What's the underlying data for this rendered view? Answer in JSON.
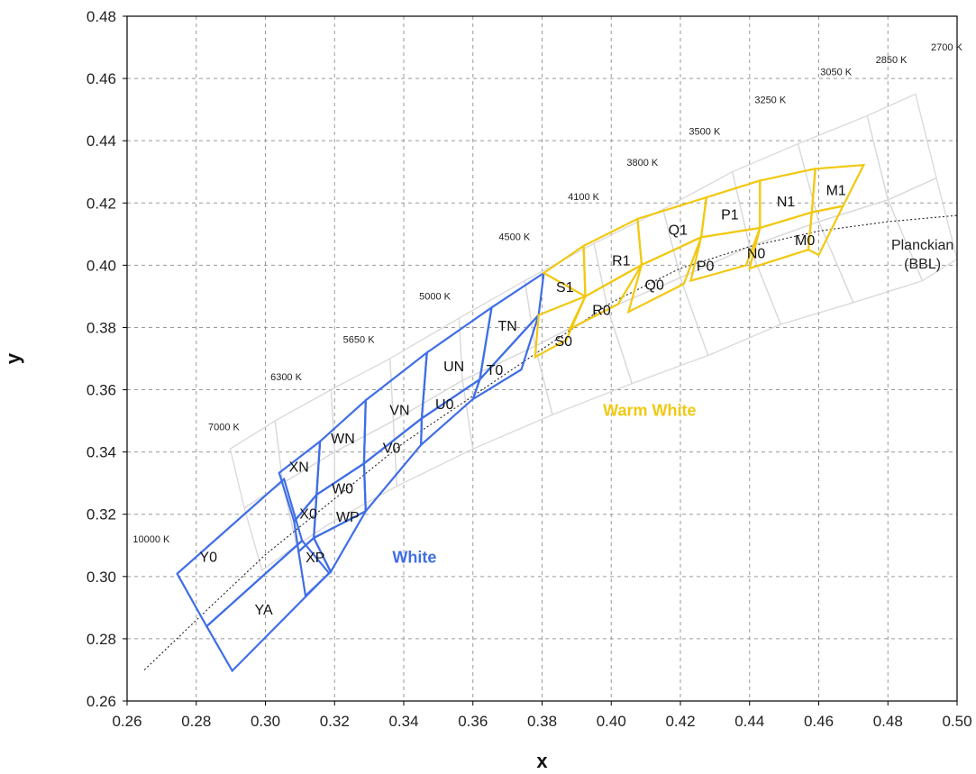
{
  "chart_data": {
    "type": "scatter",
    "title": "",
    "xlabel": "x",
    "ylabel": "y",
    "xlim": [
      0.26,
      0.5
    ],
    "ylim": [
      0.26,
      0.48
    ],
    "xticks": [
      "0.26",
      "0.28",
      "0.30",
      "0.32",
      "0.34",
      "0.36",
      "0.38",
      "0.40",
      "0.42",
      "0.44",
      "0.46",
      "0.48",
      "0.50"
    ],
    "yticks": [
      "0.26",
      "0.28",
      "0.30",
      "0.32",
      "0.34",
      "0.36",
      "0.38",
      "0.40",
      "0.42",
      "0.44",
      "0.46",
      "0.48"
    ],
    "grid": true,
    "colors": {
      "white": "#3f6ee6",
      "warm_white": "#f2c811",
      "grid_ansi": "#d9d9d9",
      "planckian": "#222222"
    },
    "planckian_locus": {
      "name": "Planckian (BBL)",
      "label_lines": [
        "Planckian",
        "(BBL)"
      ],
      "points": [
        [
          0.265,
          0.27
        ],
        [
          0.28,
          0.286
        ],
        [
          0.3,
          0.307
        ],
        [
          0.32,
          0.325
        ],
        [
          0.34,
          0.343
        ],
        [
          0.36,
          0.358
        ],
        [
          0.38,
          0.373
        ],
        [
          0.4,
          0.388
        ],
        [
          0.42,
          0.399
        ],
        [
          0.44,
          0.406
        ],
        [
          0.46,
          0.411
        ],
        [
          0.48,
          0.414
        ],
        [
          0.5,
          0.416
        ]
      ]
    },
    "cct_labels": [
      {
        "label": "10000 K",
        "x": 0.267,
        "y": 0.311
      },
      {
        "label": "7000 K",
        "x": 0.288,
        "y": 0.347
      },
      {
        "label": "6300 K",
        "x": 0.306,
        "y": 0.363
      },
      {
        "label": "5650 K",
        "x": 0.327,
        "y": 0.375
      },
      {
        "label": "5000 K",
        "x": 0.349,
        "y": 0.389
      },
      {
        "label": "4500 K",
        "x": 0.372,
        "y": 0.408
      },
      {
        "label": "4100 K",
        "x": 0.392,
        "y": 0.421
      },
      {
        "label": "3800 K",
        "x": 0.409,
        "y": 0.432
      },
      {
        "label": "3500 K",
        "x": 0.427,
        "y": 0.442
      },
      {
        "label": "3250 K",
        "x": 0.446,
        "y": 0.452
      },
      {
        "label": "3050 K",
        "x": 0.465,
        "y": 0.461
      },
      {
        "label": "2850 K",
        "x": 0.481,
        "y": 0.465
      },
      {
        "label": "2700 K",
        "x": 0.497,
        "y": 0.469
      }
    ],
    "ansi_quads": [
      {
        "p": [
          [
            0.2898,
            0.341
          ],
          [
            0.3028,
            0.35
          ],
          [
            0.305,
            0.33
          ],
          [
            0.2939,
            0.322
          ]
        ]
      },
      {
        "p": [
          [
            0.3028,
            0.35
          ],
          [
            0.319,
            0.36
          ],
          [
            0.32,
            0.34
          ],
          [
            0.305,
            0.33
          ]
        ]
      },
      {
        "p": [
          [
            0.319,
            0.36
          ],
          [
            0.336,
            0.37
          ],
          [
            0.337,
            0.35
          ],
          [
            0.32,
            0.34
          ]
        ]
      },
      {
        "p": [
          [
            0.336,
            0.37
          ],
          [
            0.356,
            0.383
          ],
          [
            0.357,
            0.363
          ],
          [
            0.337,
            0.35
          ]
        ]
      },
      {
        "p": [
          [
            0.356,
            0.383
          ],
          [
            0.375,
            0.395
          ],
          [
            0.378,
            0.374
          ],
          [
            0.357,
            0.363
          ]
        ]
      },
      {
        "p": [
          [
            0.375,
            0.395
          ],
          [
            0.395,
            0.407
          ],
          [
            0.399,
            0.386
          ],
          [
            0.378,
            0.374
          ]
        ]
      },
      {
        "p": [
          [
            0.395,
            0.407
          ],
          [
            0.415,
            0.418
          ],
          [
            0.42,
            0.396
          ],
          [
            0.399,
            0.386
          ]
        ]
      },
      {
        "p": [
          [
            0.415,
            0.418
          ],
          [
            0.435,
            0.43
          ],
          [
            0.44,
            0.406
          ],
          [
            0.42,
            0.396
          ]
        ]
      },
      {
        "p": [
          [
            0.435,
            0.43
          ],
          [
            0.454,
            0.439
          ],
          [
            0.46,
            0.414
          ],
          [
            0.44,
            0.406
          ]
        ]
      },
      {
        "p": [
          [
            0.454,
            0.439
          ],
          [
            0.474,
            0.448
          ],
          [
            0.48,
            0.421
          ],
          [
            0.46,
            0.414
          ]
        ]
      },
      {
        "p": [
          [
            0.474,
            0.448
          ],
          [
            0.488,
            0.455
          ],
          [
            0.494,
            0.428
          ],
          [
            0.48,
            0.421
          ]
        ]
      },
      {
        "p": [
          [
            0.2939,
            0.322
          ],
          [
            0.305,
            0.33
          ],
          [
            0.309,
            0.31
          ],
          [
            0.299,
            0.302
          ]
        ]
      },
      {
        "p": [
          [
            0.305,
            0.33
          ],
          [
            0.32,
            0.34
          ],
          [
            0.32,
            0.318
          ],
          [
            0.309,
            0.31
          ]
        ]
      },
      {
        "p": [
          [
            0.32,
            0.34
          ],
          [
            0.337,
            0.35
          ],
          [
            0.338,
            0.329
          ],
          [
            0.32,
            0.318
          ]
        ]
      },
      {
        "p": [
          [
            0.337,
            0.35
          ],
          [
            0.357,
            0.363
          ],
          [
            0.36,
            0.341
          ],
          [
            0.338,
            0.329
          ]
        ]
      },
      {
        "p": [
          [
            0.357,
            0.363
          ],
          [
            0.378,
            0.374
          ],
          [
            0.383,
            0.352
          ],
          [
            0.36,
            0.341
          ]
        ]
      },
      {
        "p": [
          [
            0.378,
            0.374
          ],
          [
            0.399,
            0.386
          ],
          [
            0.406,
            0.362
          ],
          [
            0.383,
            0.352
          ]
        ]
      },
      {
        "p": [
          [
            0.399,
            0.386
          ],
          [
            0.42,
            0.396
          ],
          [
            0.428,
            0.371
          ],
          [
            0.406,
            0.362
          ]
        ]
      },
      {
        "p": [
          [
            0.42,
            0.396
          ],
          [
            0.44,
            0.406
          ],
          [
            0.449,
            0.381
          ],
          [
            0.428,
            0.371
          ]
        ]
      },
      {
        "p": [
          [
            0.44,
            0.406
          ],
          [
            0.46,
            0.414
          ],
          [
            0.47,
            0.388
          ],
          [
            0.449,
            0.381
          ]
        ]
      },
      {
        "p": [
          [
            0.46,
            0.414
          ],
          [
            0.48,
            0.421
          ],
          [
            0.49,
            0.395
          ],
          [
            0.47,
            0.388
          ]
        ]
      },
      {
        "p": [
          [
            0.48,
            0.421
          ],
          [
            0.494,
            0.428
          ],
          [
            0.5,
            0.402
          ],
          [
            0.49,
            0.395
          ]
        ]
      }
    ],
    "white_bins": [
      {
        "label": "Y0",
        "lx": 0.2835,
        "ly": 0.3064,
        "p": [
          [
            0.2745,
            0.3009
          ],
          [
            0.3054,
            0.3313
          ],
          [
            0.3106,
            0.3115
          ],
          [
            0.283,
            0.284
          ]
        ]
      },
      {
        "label": "YA",
        "lx": 0.2995,
        "ly": 0.2895,
        "p": [
          [
            0.283,
            0.284
          ],
          [
            0.3106,
            0.3115
          ],
          [
            0.3184,
            0.3011
          ],
          [
            0.2904,
            0.2697
          ]
        ]
      },
      {
        "label": "XN",
        "lx": 0.3097,
        "ly": 0.3354,
        "p": [
          [
            0.304,
            0.3333
          ],
          [
            0.3158,
            0.3434
          ],
          [
            0.3148,
            0.3263
          ],
          [
            0.3083,
            0.3177
          ]
        ]
      },
      {
        "label": "X0",
        "lx": 0.3124,
        "ly": 0.3204,
        "p": [
          [
            0.3083,
            0.3177
          ],
          [
            0.3148,
            0.3263
          ],
          [
            0.314,
            0.3124
          ],
          [
            0.3096,
            0.308
          ]
        ]
      },
      {
        "label": "XP",
        "lx": 0.3144,
        "ly": 0.3063,
        "p": [
          [
            0.3096,
            0.308
          ],
          [
            0.314,
            0.3124
          ],
          [
            0.3189,
            0.3015
          ],
          [
            0.3116,
            0.2938
          ]
        ]
      },
      {
        "label": "WN",
        "lx": 0.3224,
        "ly": 0.3445,
        "p": [
          [
            0.3158,
            0.3434
          ],
          [
            0.329,
            0.3566
          ],
          [
            0.3285,
            0.3363
          ],
          [
            0.3148,
            0.3263
          ]
        ]
      },
      {
        "label": "W0",
        "lx": 0.3223,
        "ly": 0.3284,
        "p": [
          [
            0.3148,
            0.3263
          ],
          [
            0.3285,
            0.3363
          ],
          [
            0.329,
            0.321
          ],
          [
            0.314,
            0.3124
          ]
        ]
      },
      {
        "label": "WP",
        "lx": 0.3238,
        "ly": 0.3194,
        "p": [
          [
            0.314,
            0.3124
          ],
          [
            0.329,
            0.321
          ],
          [
            0.329,
            0.321
          ],
          [
            0.3189,
            0.3015
          ]
        ]
      },
      {
        "label": "VN",
        "lx": 0.3388,
        "ly": 0.3537,
        "p": [
          [
            0.329,
            0.3566
          ],
          [
            0.3467,
            0.3719
          ],
          [
            0.3452,
            0.3508
          ],
          [
            0.3285,
            0.3363
          ]
        ]
      },
      {
        "label": "V0",
        "lx": 0.3365,
        "ly": 0.3415,
        "p": [
          [
            0.3285,
            0.3363
          ],
          [
            0.3452,
            0.3508
          ],
          [
            0.345,
            0.3423
          ],
          [
            0.329,
            0.321
          ]
        ]
      },
      {
        "label": "UN",
        "lx": 0.3545,
        "ly": 0.3677,
        "p": [
          [
            0.3467,
            0.3719
          ],
          [
            0.3654,
            0.3864
          ],
          [
            0.362,
            0.3633
          ],
          [
            0.3452,
            0.3508
          ]
        ]
      },
      {
        "label": "U0",
        "lx": 0.3518,
        "ly": 0.3555,
        "p": [
          [
            0.3452,
            0.3508
          ],
          [
            0.362,
            0.3633
          ],
          [
            0.36,
            0.357
          ],
          [
            0.345,
            0.3423
          ]
        ]
      },
      {
        "label": "TN",
        "lx": 0.37,
        "ly": 0.3807,
        "p": [
          [
            0.3654,
            0.3864
          ],
          [
            0.3805,
            0.3975
          ],
          [
            0.379,
            0.384
          ],
          [
            0.362,
            0.3633
          ]
        ]
      },
      {
        "label": "T0",
        "lx": 0.3663,
        "ly": 0.3665,
        "p": [
          [
            0.362,
            0.3633
          ],
          [
            0.379,
            0.384
          ],
          [
            0.374,
            0.3665
          ],
          [
            0.36,
            0.357
          ]
        ]
      }
    ],
    "warm_white_bins": [
      {
        "label": "S1",
        "lx": 0.3866,
        "ly": 0.3932,
        "p": [
          [
            0.3805,
            0.3975
          ],
          [
            0.392,
            0.4062
          ],
          [
            0.3925,
            0.39
          ],
          [
            0.3805,
            0.3975
          ]
        ]
      },
      {
        "label": "S0",
        "lx": 0.3862,
        "ly": 0.3758,
        "p": [
          [
            0.379,
            0.384
          ],
          [
            0.3925,
            0.39
          ],
          [
            0.387,
            0.376
          ],
          [
            0.378,
            0.3705
          ]
        ]
      },
      {
        "label": "R1",
        "lx": 0.4029,
        "ly": 0.4017,
        "p": [
          [
            0.392,
            0.4062
          ],
          [
            0.4076,
            0.4149
          ],
          [
            0.4088,
            0.4001
          ],
          [
            0.3925,
            0.39
          ]
        ]
      },
      {
        "label": "R0",
        "lx": 0.3972,
        "ly": 0.3858,
        "p": [
          [
            0.3925,
            0.39
          ],
          [
            0.4088,
            0.4001
          ],
          [
            0.402,
            0.3875
          ],
          [
            0.388,
            0.3795
          ]
        ]
      },
      {
        "label": "Q1",
        "lx": 0.4193,
        "ly": 0.4115,
        "p": [
          [
            0.4076,
            0.4149
          ],
          [
            0.4275,
            0.4218
          ],
          [
            0.426,
            0.409
          ],
          [
            0.4088,
            0.4001
          ]
        ]
      },
      {
        "label": "Q0",
        "lx": 0.4125,
        "ly": 0.3939,
        "p": [
          [
            0.4088,
            0.4001
          ],
          [
            0.426,
            0.409
          ],
          [
            0.421,
            0.394
          ],
          [
            0.405,
            0.385
          ]
        ]
      },
      {
        "label": "P1",
        "lx": 0.4343,
        "ly": 0.4165,
        "p": [
          [
            0.4275,
            0.4218
          ],
          [
            0.443,
            0.4272
          ],
          [
            0.443,
            0.412
          ],
          [
            0.426,
            0.409
          ]
        ]
      },
      {
        "label": "P0",
        "lx": 0.4272,
        "ly": 0.4,
        "p": [
          [
            0.426,
            0.409
          ],
          [
            0.443,
            0.412
          ],
          [
            0.439,
            0.4
          ],
          [
            0.423,
            0.395
          ]
        ]
      },
      {
        "label": "N1",
        "lx": 0.4505,
        "ly": 0.4207,
        "p": [
          [
            0.443,
            0.4272
          ],
          [
            0.459,
            0.431
          ],
          [
            0.458,
            0.417
          ],
          [
            0.443,
            0.412
          ]
        ]
      },
      {
        "label": "N0",
        "lx": 0.4419,
        "ly": 0.404,
        "p": [
          [
            0.443,
            0.412
          ],
          [
            0.458,
            0.417
          ],
          [
            0.457,
            0.405
          ],
          [
            0.44,
            0.399
          ]
        ]
      },
      {
        "label": "M1",
        "lx": 0.465,
        "ly": 0.4243,
        "p": [
          [
            0.459,
            0.431
          ],
          [
            0.473,
            0.4322
          ],
          [
            0.467,
            0.419
          ],
          [
            0.458,
            0.417
          ]
        ]
      },
      {
        "label": "M0",
        "lx": 0.456,
        "ly": 0.4082,
        "p": [
          [
            0.458,
            0.417
          ],
          [
            0.467,
            0.419
          ],
          [
            0.46,
            0.4033
          ],
          [
            0.457,
            0.405
          ]
        ]
      }
    ],
    "region_labels": [
      {
        "label": "White",
        "x": 0.3431,
        "y": 0.3061,
        "color": "#3f6ee6"
      },
      {
        "label": "Warm White",
        "x": 0.4111,
        "y": 0.3533,
        "color": "#f2c811"
      }
    ]
  }
}
